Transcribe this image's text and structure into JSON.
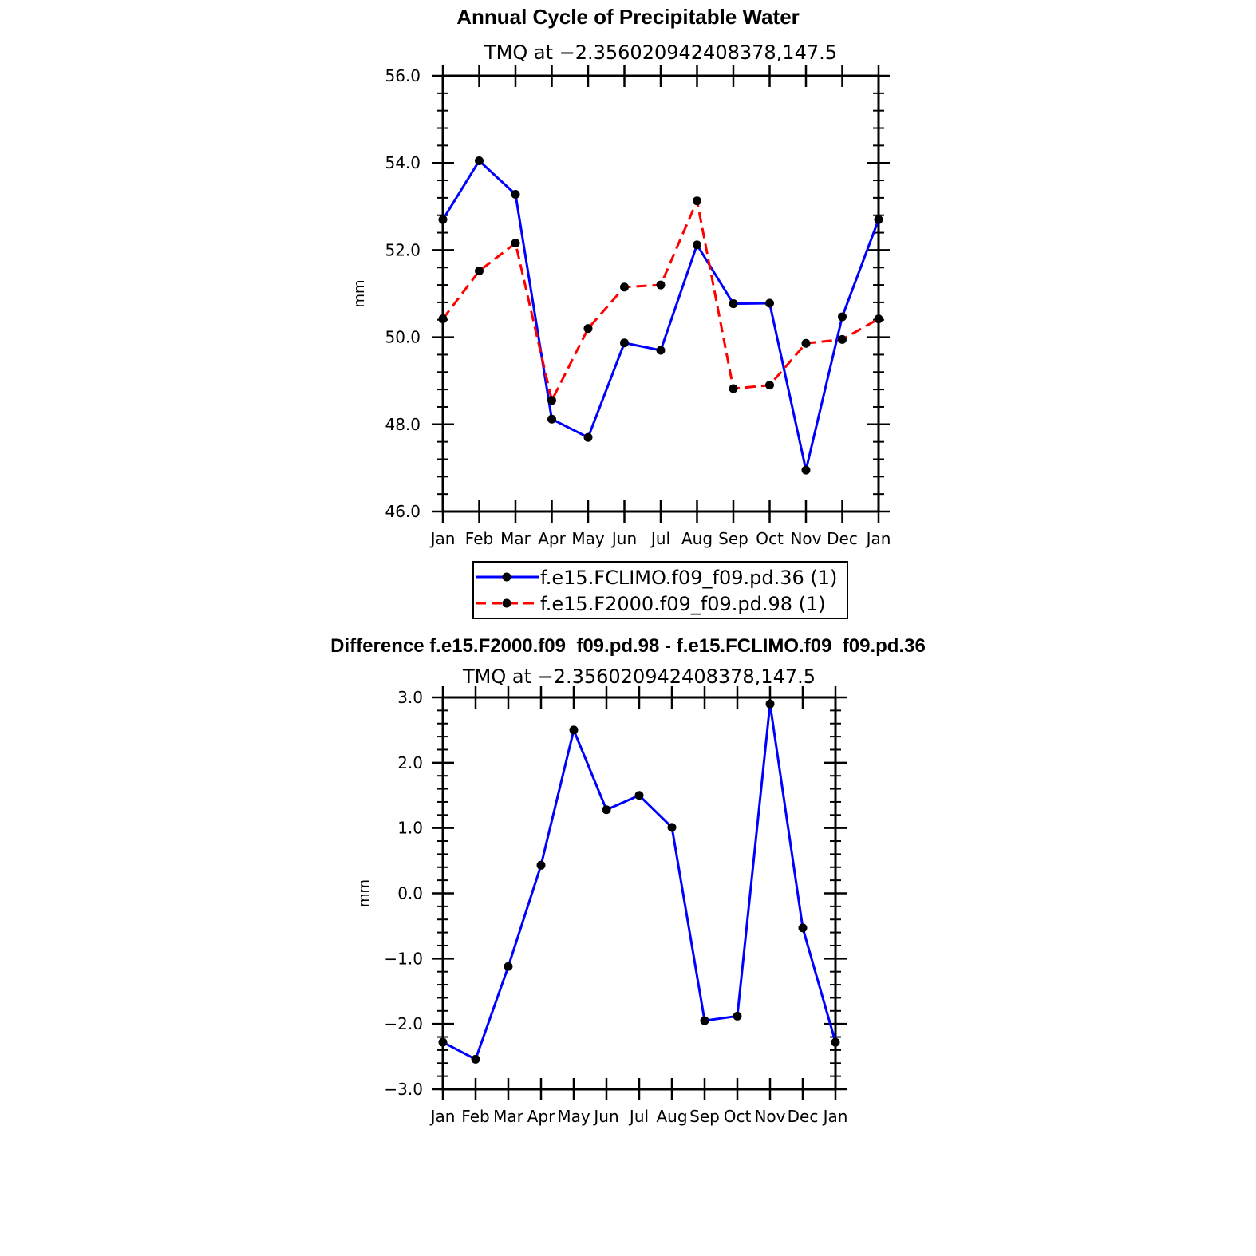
{
  "chart_data": [
    {
      "type": "line",
      "title": "Annual Cycle of Precipitable Water",
      "subtitle": "TMQ at −2.356020942408378,147.5",
      "xlabel": "",
      "ylabel": "mm",
      "ylim": [
        46.0,
        56.0
      ],
      "yticks": [
        "46.0",
        "48.0",
        "50.0",
        "52.0",
        "54.0",
        "56.0"
      ],
      "categories": [
        "Jan",
        "Feb",
        "Mar",
        "Apr",
        "May",
        "Jun",
        "Jul",
        "Aug",
        "Sep",
        "Oct",
        "Nov",
        "Dec",
        "Jan"
      ],
      "series": [
        {
          "name": "f.e15.FCLIMO.f09_f09.pd.36 (1)",
          "color": "#0000ff",
          "dash": "solid",
          "values": [
            52.7,
            54.05,
            53.28,
            48.12,
            47.7,
            49.87,
            49.7,
            52.12,
            50.77,
            50.78,
            46.95,
            50.47,
            52.7
          ]
        },
        {
          "name": "f.e15.F2000.f09_f09.pd.98 (1)",
          "color": "#ff0000",
          "dash": "dashed",
          "values": [
            50.42,
            51.52,
            52.16,
            48.55,
            50.2,
            51.15,
            51.2,
            53.13,
            48.82,
            48.9,
            49.86,
            49.95,
            50.42
          ]
        }
      ],
      "legend": "below",
      "grid": false
    },
    {
      "type": "line",
      "title": "Difference f.e15.F2000.f09_f09.pd.98 - f.e15.FCLIMO.f09_f09.pd.36",
      "subtitle": "TMQ at −2.356020942408378,147.5",
      "xlabel": "",
      "ylabel": "mm",
      "ylim": [
        -3.0,
        3.0
      ],
      "yticks": [
        "−3.0",
        "−2.0",
        "−1.0",
        "0.0",
        "1.0",
        "2.0",
        "3.0"
      ],
      "categories": [
        "Jan",
        "Feb",
        "Mar",
        "Apr",
        "May",
        "Jun",
        "Jul",
        "Aug",
        "Sep",
        "Oct",
        "Nov",
        "Dec",
        "Jan"
      ],
      "series": [
        {
          "color": "#0000ff",
          "dash": "solid",
          "values": [
            -2.28,
            -2.54,
            -1.12,
            0.43,
            2.5,
            1.28,
            1.5,
            1.01,
            -1.95,
            -1.88,
            2.9,
            -0.53,
            -2.28
          ]
        }
      ],
      "grid": false
    }
  ]
}
